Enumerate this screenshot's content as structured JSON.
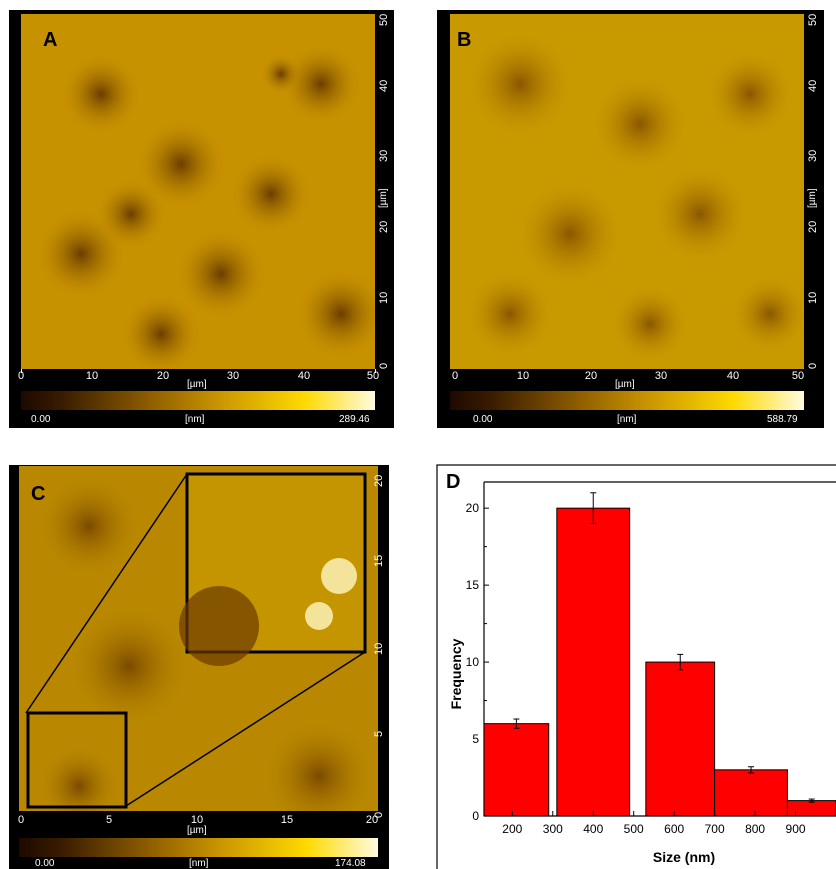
{
  "panels": {
    "a": {
      "label": "A",
      "x_ticks": [
        "0",
        "10",
        "20",
        "30",
        "40",
        "50"
      ],
      "y_ticks": [
        "0",
        "10",
        "20",
        "30",
        "40",
        "50"
      ],
      "x_unit": "[µm]",
      "y_unit": "[µm]",
      "colorbar_min": "0.00",
      "colorbar_unit": "[nm]",
      "colorbar_max": "289.46"
    },
    "b": {
      "label": "B",
      "x_ticks": [
        "0",
        "10",
        "20",
        "30",
        "40",
        "50"
      ],
      "y_ticks": [
        "0",
        "10",
        "20",
        "30",
        "40",
        "50"
      ],
      "x_unit": "[µm]",
      "y_unit": "[µm]",
      "colorbar_min": "0.00",
      "colorbar_unit": "[nm]",
      "colorbar_max": "588.79"
    },
    "c": {
      "label": "C",
      "x_ticks": [
        "0",
        "5",
        "10",
        "15",
        "20"
      ],
      "y_ticks": [
        "0",
        "5",
        "10",
        "15",
        "20"
      ],
      "x_unit": "[µm]",
      "y_unit": "[µm]",
      "colorbar_min": "0.00",
      "colorbar_unit": "[nm]",
      "colorbar_max": "174.08"
    }
  },
  "colors": {
    "afm_dark": "#3a1d00",
    "afm_mid": "#b88000",
    "afm_bright": "#ffe400",
    "bar_fill": "#ff0000"
  },
  "chart_data": {
    "type": "bar",
    "panel_label": "D",
    "categories": [
      "200",
      "300 - 400",
      "500 - 600",
      "700",
      "800 - 900"
    ],
    "values": [
      6,
      20,
      10,
      3,
      1
    ],
    "errors": [
      0.3,
      1.0,
      0.5,
      0.2,
      0.1
    ],
    "xlabel": "Size (nm)",
    "ylabel": "Frequency",
    "x_tick_labels": [
      "200",
      "300",
      "400",
      "500",
      "600",
      "700",
      "800",
      "900"
    ],
    "x_tick_values": [
      200,
      300,
      400,
      500,
      600,
      700,
      800,
      900
    ],
    "bar_ranges": [
      [
        130,
        290
      ],
      [
        310,
        490
      ],
      [
        530,
        700
      ],
      [
        700,
        880
      ],
      [
        880,
        1000
      ]
    ],
    "xlim": [
      130,
      1000
    ],
    "y_ticks": [
      0,
      5,
      10,
      15,
      20
    ],
    "ylim": [
      0,
      21.7
    ],
    "grid": false
  }
}
